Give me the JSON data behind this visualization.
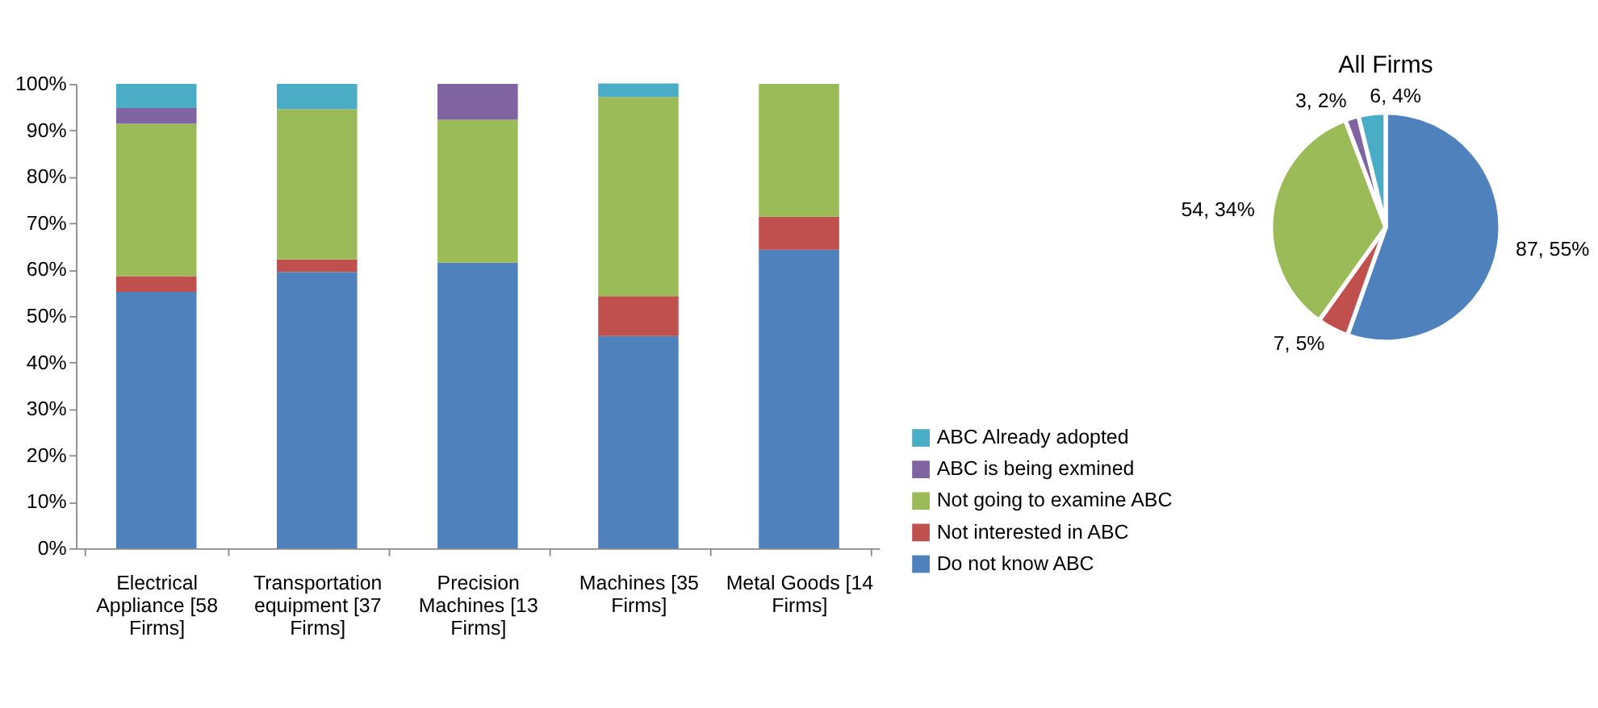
{
  "chart_data": [
    {
      "type": "bar",
      "stacked": true,
      "categories": [
        "Electrical Appliance [58 Firms]",
        "Transportation equipment [37 Firms]",
        "Precision Machines [13 Firms]",
        "Machines [35 Firms]",
        "Metal Goods [14 Firms]"
      ],
      "series": [
        {
          "name": "Do not know ABC",
          "color": "#4f81bd",
          "values": [
            55.2,
            59.5,
            61.5,
            45.7,
            64.3
          ]
        },
        {
          "name": "Not interested in ABC",
          "color": "#c0504d",
          "values": [
            3.4,
            2.7,
            0,
            8.6,
            7.1
          ]
        },
        {
          "name": "Not going to examine ABC",
          "color": "#9bbb59",
          "values": [
            32.8,
            32.4,
            30.8,
            42.9,
            28.6
          ]
        },
        {
          "name": "ABC is being exmined",
          "color": "#8064a2",
          "values": [
            3.4,
            0,
            7.7,
            0,
            0
          ]
        },
        {
          "name": "ABC Already adopted",
          "color": "#4bacc6",
          "values": [
            5.2,
            5.4,
            0,
            2.9,
            0
          ]
        }
      ],
      "ylim": [
        0,
        100
      ],
      "yticks": [
        {
          "value": 0,
          "label": "0%"
        },
        {
          "value": 10,
          "label": "10%"
        },
        {
          "value": 20,
          "label": "20%"
        },
        {
          "value": 30,
          "label": "30%"
        },
        {
          "value": 40,
          "label": "40%"
        },
        {
          "value": 50,
          "label": "50%"
        },
        {
          "value": 60,
          "label": "60%"
        },
        {
          "value": 70,
          "label": "70%"
        },
        {
          "value": 80,
          "label": "80%"
        },
        {
          "value": 90,
          "label": "90%"
        },
        {
          "value": 100,
          "label": "100%"
        }
      ],
      "grid": false,
      "legend": "bottom right"
    },
    {
      "type": "pie",
      "title": "All Firms",
      "categories": [
        null,
        null,
        null,
        null,
        null
      ],
      "values": [
        87,
        7,
        54,
        3,
        6
      ],
      "colors": [
        "#4f81bd",
        "#c0504d",
        "#9bbb59",
        "#8064a2",
        "#4bacc6"
      ],
      "value_labels": [
        "87, 55%",
        "7, 5%",
        "54, 34%",
        "3, 2%",
        "6, 4%"
      ]
    }
  ]
}
